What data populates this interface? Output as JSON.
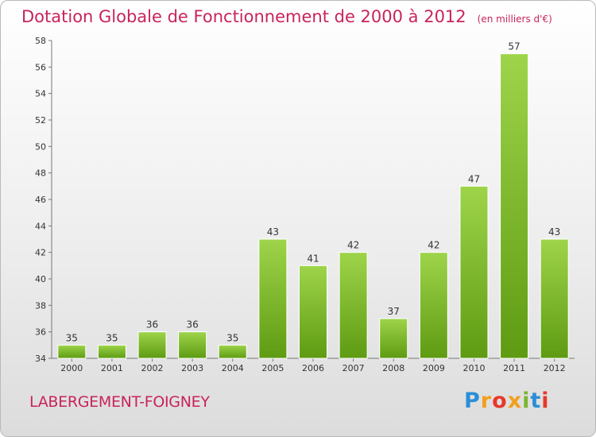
{
  "header": {
    "title": "Dotation Globale de Fonctionnement de 2000 à 2012",
    "subtitle": "(en milliers d'€)"
  },
  "footer": {
    "commune": "LABERGEMENT-FOIGNEY",
    "logo_text": "Proxiti"
  },
  "colors": {
    "title": "#c8245a",
    "bar_top": "#9ed44a",
    "bar_bottom": "#5e9b12"
  },
  "chart_data": {
    "type": "bar",
    "title": "Dotation Globale de Fonctionnement de 2000 à 2012",
    "subtitle": "(en milliers d'€)",
    "categories": [
      "2000",
      "2001",
      "2002",
      "2003",
      "2004",
      "2005",
      "2006",
      "2007",
      "2008",
      "2009",
      "2010",
      "2011",
      "2012"
    ],
    "values": [
      35,
      35,
      36,
      36,
      35,
      43,
      41,
      42,
      37,
      42,
      47,
      57,
      43
    ],
    "ylim": [
      34,
      58
    ],
    "yticks": [
      34,
      36,
      38,
      40,
      42,
      44,
      46,
      48,
      50,
      52,
      54,
      56,
      58
    ],
    "grid": false,
    "xlabel": "",
    "ylabel": ""
  }
}
